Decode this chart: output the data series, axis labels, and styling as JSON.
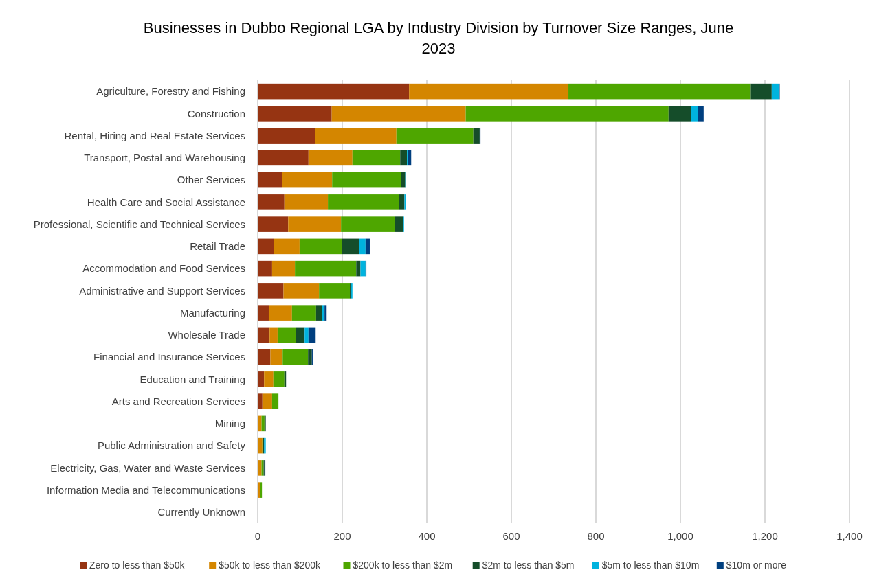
{
  "chart_data": {
    "type": "bar",
    "orientation": "horizontal",
    "stacked": true,
    "title": "Businesses in Dubbo Regional LGA by Industry Division by Turnover Size Ranges, June 2023",
    "categories": [
      "Agriculture, Forestry and Fishing",
      "Construction",
      "Rental, Hiring and Real Estate Services",
      "Transport, Postal and Warehousing",
      "Other Services",
      "Health Care and Social Assistance",
      "Professional, Scientific and Technical Services",
      "Retail Trade",
      "Accommodation and Food Services",
      "Administrative and Support Services",
      "Manufacturing",
      "Wholesale Trade",
      "Financial and Insurance Services",
      "Education and Training",
      "Arts and Recreation Services",
      "Mining",
      "Public Administration and Safety",
      "Electricity, Gas, Water and Waste Services",
      "Information Media and Telecommunications",
      "Currently Unknown"
    ],
    "series": [
      {
        "name": "Zero to less than $50k",
        "color": "#963412",
        "values": [
          358,
          175,
          136,
          120,
          57,
          63,
          72,
          39,
          34,
          61,
          26,
          28,
          30,
          15,
          11,
          0,
          0,
          0,
          0,
          0
        ]
      },
      {
        "name": "$50k to less than $200k",
        "color": "#d48600",
        "values": [
          377,
          317,
          192,
          104,
          119,
          103,
          125,
          60,
          54,
          84,
          55,
          19,
          29,
          22,
          23,
          9,
          11,
          9,
          5,
          0
        ]
      },
      {
        "name": "$200k to less than $2m",
        "color": "#4ea600",
        "values": [
          430,
          480,
          182,
          113,
          163,
          168,
          128,
          101,
          145,
          73,
          57,
          44,
          60,
          26,
          15,
          7,
          2,
          5,
          5,
          0
        ]
      },
      {
        "name": "$2m to less than $5m",
        "color": "#154d2a",
        "values": [
          51,
          54,
          15,
          16,
          10,
          13,
          19,
          40,
          10,
          2,
          14,
          20,
          9,
          4,
          0,
          3,
          2,
          2,
          0,
          0
        ]
      },
      {
        "name": "$5m to less than $10m",
        "color": "#00b3de",
        "values": [
          17,
          16,
          0,
          3,
          2,
          3,
          2,
          15,
          12,
          4,
          6,
          9,
          0,
          0,
          0,
          0,
          4,
          0,
          0,
          0
        ]
      },
      {
        "name": "$10m or more",
        "color": "#003f7f",
        "values": [
          2,
          13,
          2,
          7,
          0,
          0,
          0,
          10,
          2,
          0,
          5,
          17,
          2,
          0,
          0,
          0,
          0,
          2,
          0,
          0
        ]
      }
    ],
    "xlim": [
      0,
      1400
    ],
    "xticks": [
      0,
      200,
      400,
      600,
      800,
      {
        "value": 1000,
        "label": "1,000"
      },
      {
        "value": 1200,
        "label": "1,200"
      },
      {
        "value": 1400,
        "label": "1,400"
      }
    ],
    "grid": "x",
    "legend": "bottom"
  }
}
